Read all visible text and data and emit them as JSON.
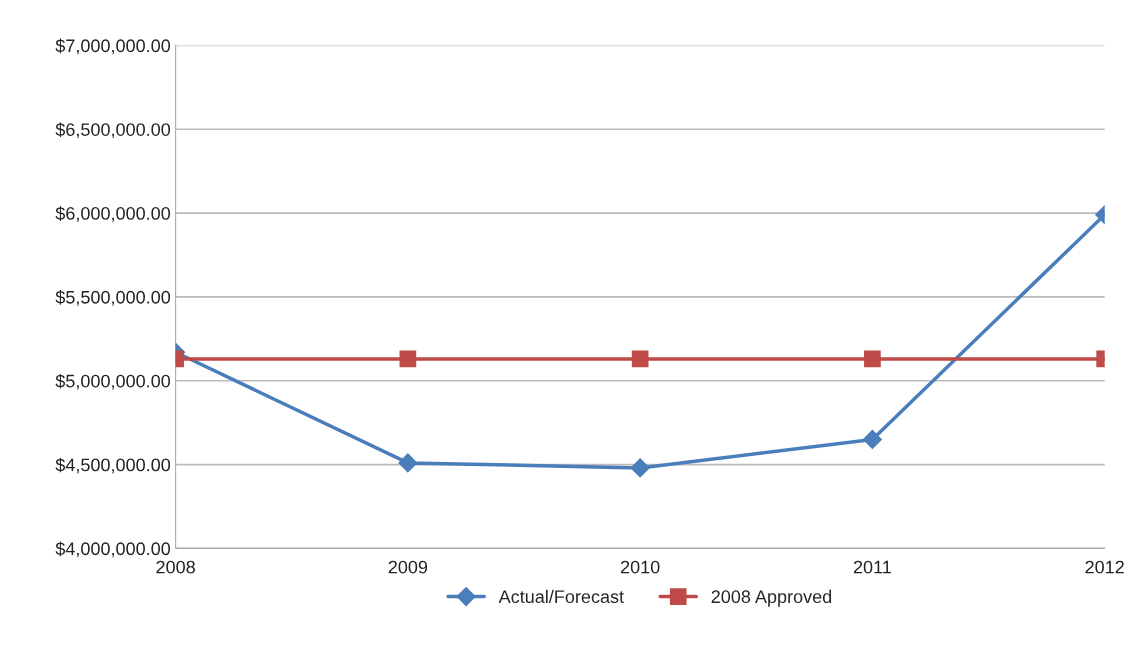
{
  "chart_data": {
    "type": "line",
    "categories": [
      "2008",
      "2009",
      "2010",
      "2011",
      "2012"
    ],
    "series": [
      {
        "name": "Actual/Forecast",
        "color": "#4a7ebb",
        "marker": "diamond",
        "values": [
          5170000,
          4510000,
          4480000,
          4650000,
          5990000
        ]
      },
      {
        "name": "2008 Approved",
        "color": "#be4b48",
        "marker": "square",
        "values": [
          5130000,
          5130000,
          5130000,
          5130000,
          5130000
        ]
      }
    ],
    "ylim": [
      4000000,
      7000000
    ],
    "yticks": [
      {
        "value": 4000000,
        "label": "$4,000,000.00"
      },
      {
        "value": 4500000,
        "label": "$4,500,000.00"
      },
      {
        "value": 5000000,
        "label": "$5,000,000.00"
      },
      {
        "value": 5500000,
        "label": "$5,500,000.00"
      },
      {
        "value": 6000000,
        "label": "$6,000,000.00"
      },
      {
        "value": 6500000,
        "label": "$6,500,000.00"
      },
      {
        "value": 7000000,
        "label": "$7,000,000.00"
      }
    ],
    "grid": "y",
    "legend": "bottom",
    "line_style": "solid"
  }
}
